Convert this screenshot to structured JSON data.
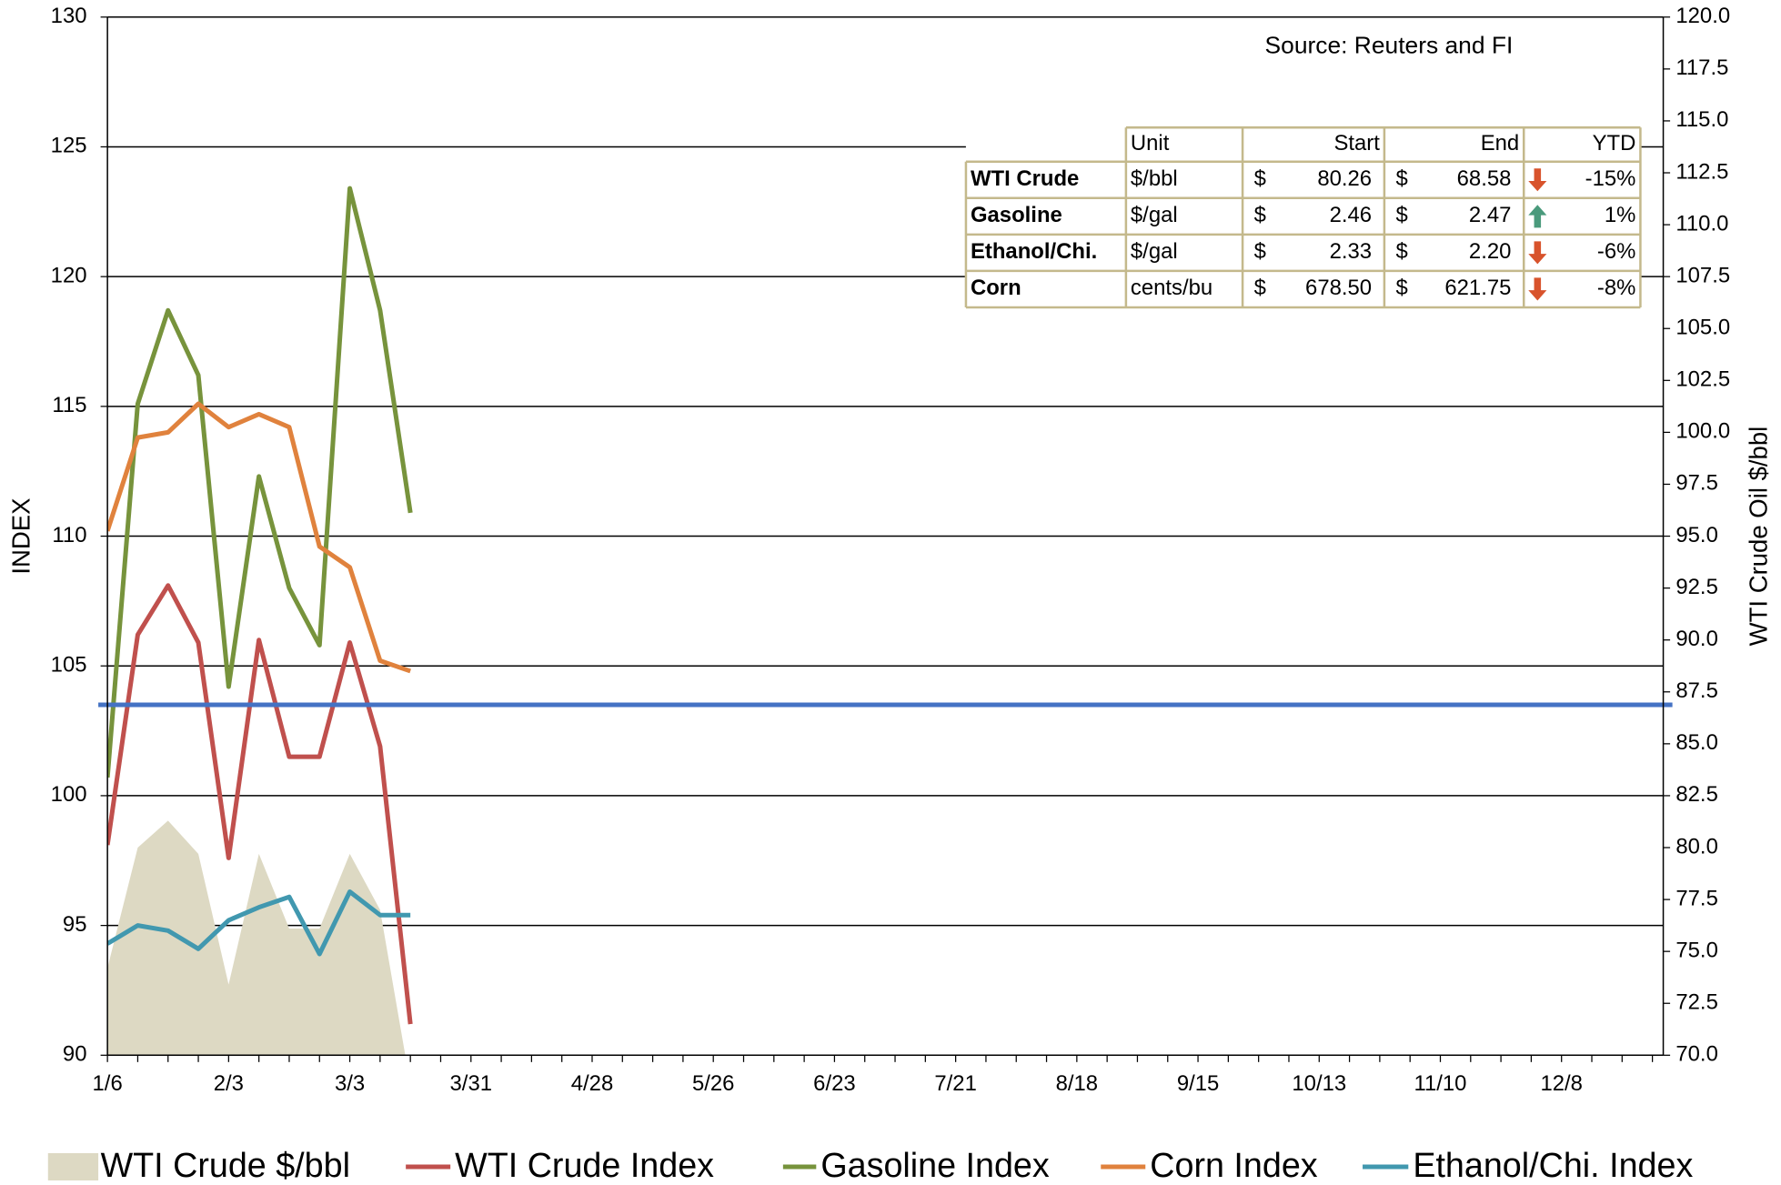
{
  "chart_data": {
    "type": "line",
    "source": "Source: Reuters and FI",
    "ylabel": "INDEX",
    "y2label": "WTI Crude Oil $/bbl",
    "ylim": [
      90,
      130
    ],
    "yticks": [
      90,
      95,
      100,
      105,
      110,
      115,
      120,
      125,
      130
    ],
    "y2lim": [
      70,
      120
    ],
    "y2ticks": [
      {
        "value": 70,
        "label": "70.0"
      },
      72.5,
      {
        "value": 75,
        "label": "75.0"
      },
      77.5,
      {
        "value": 80,
        "label": "80.0"
      },
      82.5,
      {
        "value": 85,
        "label": "85.0"
      },
      87.5,
      {
        "value": 90,
        "label": "90.0"
      },
      92.5,
      {
        "value": 95,
        "label": "95.0"
      },
      97.5,
      {
        "value": 100,
        "label": "100.0"
      },
      102.5,
      {
        "value": 105,
        "label": "105.0"
      },
      107.5,
      {
        "value": 110,
        "label": "110.0"
      },
      112.5,
      {
        "value": 115,
        "label": "115.0"
      },
      117.5,
      {
        "value": 120,
        "label": "120.0"
      }
    ],
    "grid": true,
    "hline": {
      "value": 103.5,
      "color": "#4472c4"
    },
    "categories": [
      "1/6",
      null,
      null,
      null,
      "2/3",
      null,
      null,
      null,
      "3/3",
      null,
      null,
      null,
      "3/31",
      null,
      null,
      null,
      "4/28",
      null,
      null,
      null,
      "5/26",
      null,
      null,
      null,
      "6/23",
      null,
      null,
      null,
      "7/21",
      null,
      null,
      null,
      "8/18",
      null,
      null,
      null,
      "9/15",
      null,
      null,
      null,
      "10/13",
      null,
      null,
      null,
      "11/10",
      null,
      null,
      null,
      "12/8",
      null,
      null,
      null
    ],
    "series": [
      {
        "name": "WTI Crude $/bbl",
        "type": "area",
        "axis": "y2",
        "color": "#ddd9c3",
        "values": [
          74.2,
          80.0,
          81.3,
          79.7,
          73.4,
          79.7,
          76.1,
          76.1,
          79.7,
          77.0,
          68.58,
          null,
          null,
          null,
          null,
          null,
          null,
          null,
          null,
          null,
          null,
          null,
          null,
          null,
          null,
          null,
          null,
          null,
          null,
          null,
          null,
          null,
          null,
          null,
          null,
          null,
          null,
          null,
          null,
          null,
          null,
          null,
          null,
          null,
          null,
          null,
          null,
          null,
          null,
          null,
          null,
          null
        ]
      },
      {
        "name": "WTI Crude Index",
        "type": "line",
        "color": "#c0504d",
        "values": [
          98.1,
          106.2,
          108.1,
          105.9,
          97.6,
          106.0,
          101.5,
          101.5,
          105.9,
          101.9,
          91.2,
          null,
          null,
          null,
          null,
          null,
          null,
          null,
          null,
          null,
          null,
          null,
          null,
          null,
          null,
          null,
          null,
          null,
          null,
          null,
          null,
          null,
          null,
          null,
          null,
          null,
          null,
          null,
          null,
          null,
          null,
          null,
          null,
          null,
          null,
          null,
          null,
          null,
          null,
          null,
          null,
          null
        ]
      },
      {
        "name": "Gasoline Index",
        "type": "line",
        "color": "#77933c",
        "values": [
          100.7,
          115.1,
          118.7,
          116.2,
          104.2,
          112.3,
          108.0,
          105.8,
          123.4,
          118.7,
          110.9,
          null,
          null,
          null,
          null,
          null,
          null,
          null,
          null,
          null,
          null,
          null,
          null,
          null,
          null,
          null,
          null,
          null,
          null,
          null,
          null,
          null,
          null,
          null,
          null,
          null,
          null,
          null,
          null,
          null,
          null,
          null,
          null,
          null,
          null,
          null,
          null,
          null,
          null,
          null,
          null,
          null
        ]
      },
      {
        "name": "Corn Index",
        "type": "line",
        "color": "#e0823d",
        "values": [
          110.2,
          113.8,
          114.0,
          115.1,
          114.2,
          114.7,
          114.2,
          109.6,
          108.8,
          105.2,
          104.8,
          null,
          null,
          null,
          null,
          null,
          null,
          null,
          null,
          null,
          null,
          null,
          null,
          null,
          null,
          null,
          null,
          null,
          null,
          null,
          null,
          null,
          null,
          null,
          null,
          null,
          null,
          null,
          null,
          null,
          null,
          null,
          null,
          null,
          null,
          null,
          null,
          null,
          null,
          null,
          null,
          null
        ]
      },
      {
        "name": "Ethanol/Chi. Index",
        "type": "line",
        "color": "#4198af",
        "values": [
          94.3,
          95.0,
          94.8,
          94.1,
          95.2,
          95.7,
          96.1,
          93.9,
          96.3,
          95.4,
          95.4,
          null,
          null,
          null,
          null,
          null,
          null,
          null,
          null,
          null,
          null,
          null,
          null,
          null,
          null,
          null,
          null,
          null,
          null,
          null,
          null,
          null,
          null,
          null,
          null,
          null,
          null,
          null,
          null,
          null,
          null,
          null,
          null,
          null,
          null,
          null,
          null,
          null,
          null,
          null,
          null,
          null
        ]
      }
    ]
  },
  "table": {
    "header": [
      "Unit",
      "Start",
      "End",
      "YTD"
    ],
    "rows": [
      [
        "WTI Crude",
        "$/bbl",
        "$",
        "80.26",
        "$",
        "68.58",
        "-15%"
      ],
      [
        "Gasoline",
        "$/gal",
        "$",
        "2.46",
        "$",
        "2.47",
        "1%"
      ],
      [
        "Ethanol/Chi.",
        "$/gal",
        "$",
        "2.33",
        "$",
        "2.20",
        "-6%"
      ],
      [
        "Corn",
        "cents/bu",
        "$",
        "678.50",
        "$",
        "621.75",
        "-8%"
      ]
    ],
    "row_colors": [
      "#c0504d",
      "#77933c",
      "#00b0f0",
      "#e0823d"
    ],
    "directions": [
      "down",
      "up",
      "down",
      "down"
    ]
  }
}
